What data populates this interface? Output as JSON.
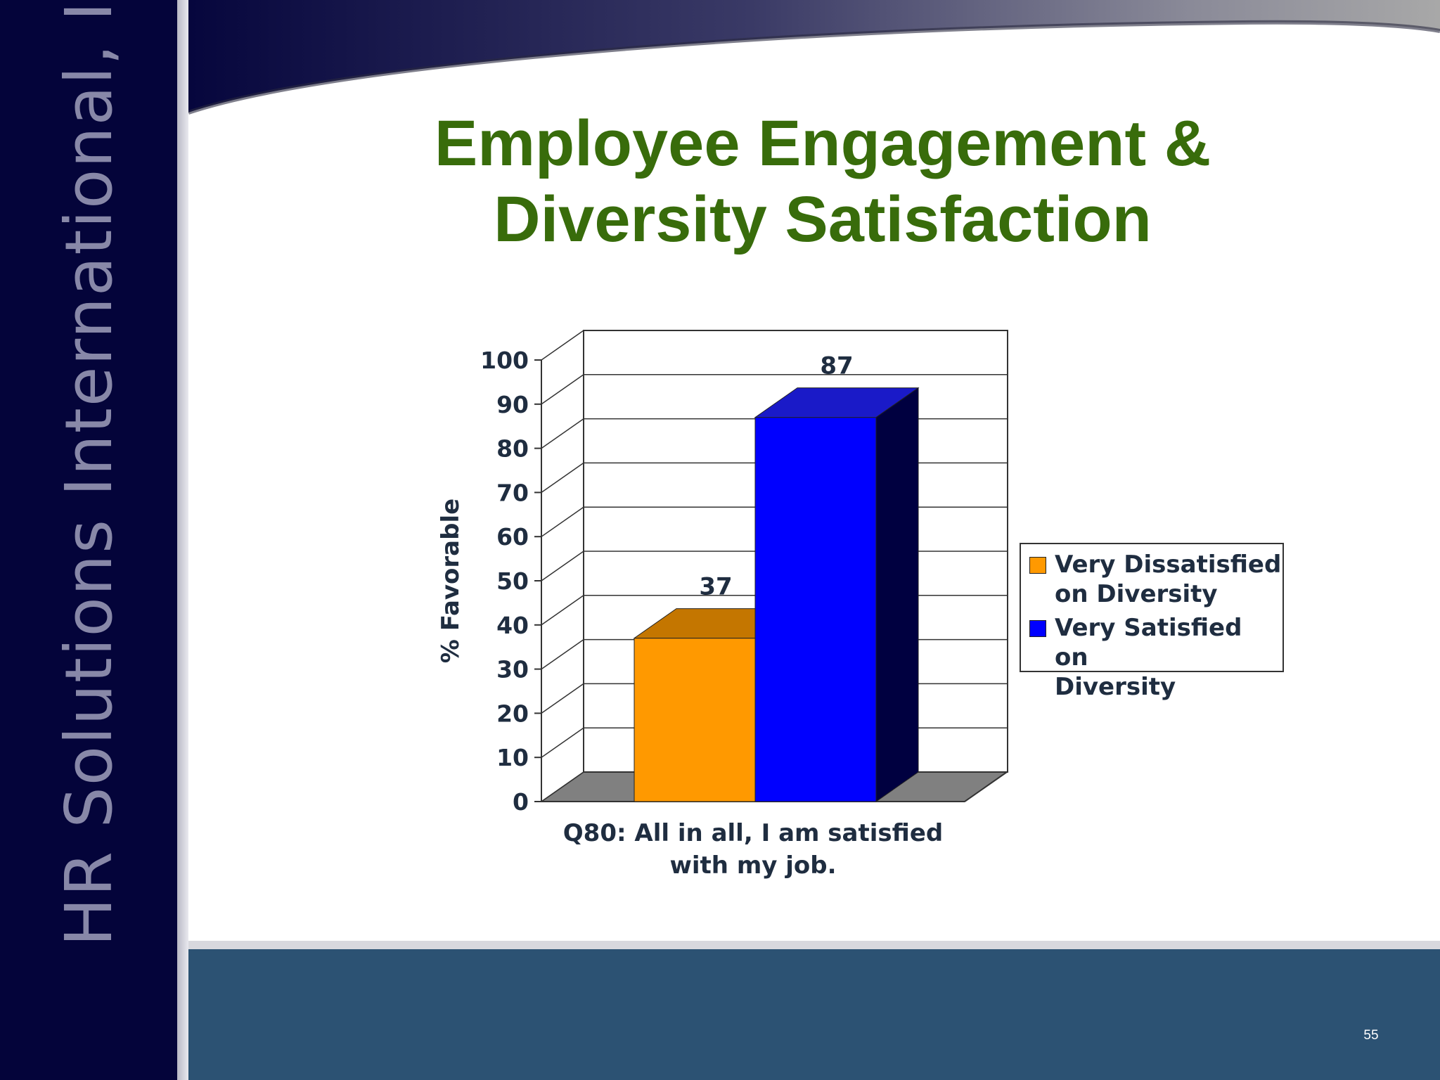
{
  "slide": {
    "title_line1": "Employee Engagement &",
    "title_line2": "Diversity Satisfaction",
    "brand": "HR Solutions International, Inc.",
    "page_number": "55"
  },
  "colors": {
    "sidebar": "#04043a",
    "footer": "#2c5273",
    "title": "#386c0b",
    "series_orange": "#ff9900",
    "series_blue": "#0000ff"
  },
  "chart_data": {
    "type": "bar",
    "title": "",
    "ylabel": "% Favorable",
    "xlabel": "",
    "ylim": [
      0,
      100
    ],
    "yticks": [
      0,
      10,
      20,
      30,
      40,
      50,
      60,
      70,
      80,
      90,
      100
    ],
    "categories": [
      "Q80: All in all, I am satisfied with my job."
    ],
    "category_label_lines": [
      "Q80: All in all, I am satisfied",
      "with my job."
    ],
    "series": [
      {
        "name": "Very Dissatisfied on Diversity",
        "name_lines": [
          "Very Dissatisfied",
          "on Diversity"
        ],
        "values": [
          37
        ],
        "color": "#ff9900"
      },
      {
        "name": "Very Satisfied on Diversity",
        "name_lines": [
          "Very Satisfied on",
          "Diversity"
        ],
        "values": [
          87
        ],
        "color": "#0000ff"
      }
    ],
    "grid": true,
    "legend": "right",
    "three_d": true
  }
}
